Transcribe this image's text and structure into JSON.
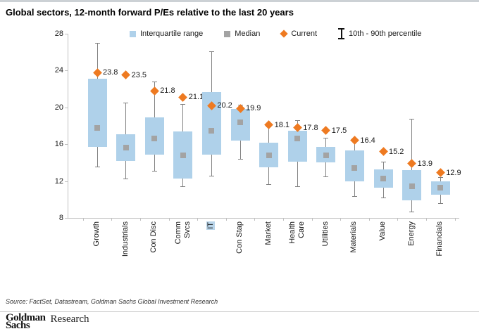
{
  "header": {
    "title": "Global sectors, 12-month forward P/Es relative to the last 20 years"
  },
  "legend": [
    {
      "icon": "blue-square",
      "label": "Interquartile range"
    },
    {
      "icon": "gray-square",
      "label": "Median"
    },
    {
      "icon": "orange-diamond",
      "label": "Current"
    },
    {
      "icon": "ibeam",
      "label": "10th - 90th percentile"
    }
  ],
  "chart_data": {
    "type": "box",
    "title": "Global sectors, 12-month forward P/Es relative to the last 20 years",
    "ylim": [
      8,
      28
    ],
    "yticks": [
      28,
      24,
      20,
      16,
      12,
      8
    ],
    "grid": false,
    "legend_position": "top",
    "highlighted_category": "IT",
    "categories": [
      "Growth",
      "Industrials",
      "Con Disc",
      "Comm\nSvcs",
      "IT",
      "Con Stap",
      "Market",
      "Health\nCare",
      "Utilities",
      "Materials",
      "Value",
      "Energy",
      "Financials"
    ],
    "series": [
      {
        "name": "Growth",
        "current": 23.8,
        "p90": 27.0,
        "q3": 23.1,
        "median": 17.8,
        "q1": 15.7,
        "p10": 13.6
      },
      {
        "name": "Industrials",
        "current": 23.5,
        "p90": 20.5,
        "q3": 17.1,
        "median": 15.6,
        "q1": 14.2,
        "p10": 12.3
      },
      {
        "name": "Con Disc",
        "current": 21.8,
        "p90": 22.8,
        "q3": 18.9,
        "median": 16.6,
        "q1": 14.9,
        "p10": 13.1
      },
      {
        "name": "Comm Svcs",
        "current": 21.1,
        "p90": 20.4,
        "q3": 17.4,
        "median": 14.8,
        "q1": 12.3,
        "p10": 11.4
      },
      {
        "name": "IT",
        "current": 20.2,
        "p90": 26.1,
        "q3": 21.7,
        "median": 17.5,
        "q1": 14.9,
        "p10": 12.6
      },
      {
        "name": "Con Stap",
        "current": 19.9,
        "p90": 20.3,
        "q3": 19.8,
        "median": 18.4,
        "q1": 16.4,
        "p10": 14.4
      },
      {
        "name": "Market",
        "current": 18.1,
        "p90": 17.9,
        "q3": 16.2,
        "median": 14.8,
        "q1": 13.5,
        "p10": 11.7
      },
      {
        "name": "Health Care",
        "current": 17.8,
        "p90": 18.6,
        "q3": 17.5,
        "median": 16.6,
        "q1": 14.1,
        "p10": 11.4
      },
      {
        "name": "Utilities",
        "current": 17.5,
        "p90": 16.7,
        "q3": 15.7,
        "median": 14.8,
        "q1": 14.0,
        "p10": 12.5
      },
      {
        "name": "Materials",
        "current": 16.4,
        "p90": 16.6,
        "q3": 15.3,
        "median": 13.4,
        "q1": 12.0,
        "p10": 10.4
      },
      {
        "name": "Value",
        "current": 15.2,
        "p90": 14.1,
        "q3": 13.3,
        "median": 12.3,
        "q1": 11.3,
        "p10": 10.2
      },
      {
        "name": "Energy",
        "current": 13.9,
        "p90": 18.8,
        "q3": 13.2,
        "median": 11.4,
        "q1": 9.9,
        "p10": 8.7
      },
      {
        "name": "Financials",
        "current": 12.9,
        "p90": 12.4,
        "q3": 12.0,
        "median": 11.3,
        "q1": 10.5,
        "p10": 9.6
      }
    ]
  },
  "source": "Source: FactSet, Datastream, Goldman Sachs Global Investment Research",
  "footer": {
    "logo_line1": "Goldman",
    "logo_line2": "Sachs",
    "research_label": "Research"
  },
  "colors": {
    "box": "#afd1ea",
    "median": "#a3a3a3",
    "current": "#ee7a21",
    "whisker": "#808080",
    "axis": "#c0c0c0",
    "highlight": "#b9d5ea",
    "top_bar": "#ccd1d5"
  }
}
